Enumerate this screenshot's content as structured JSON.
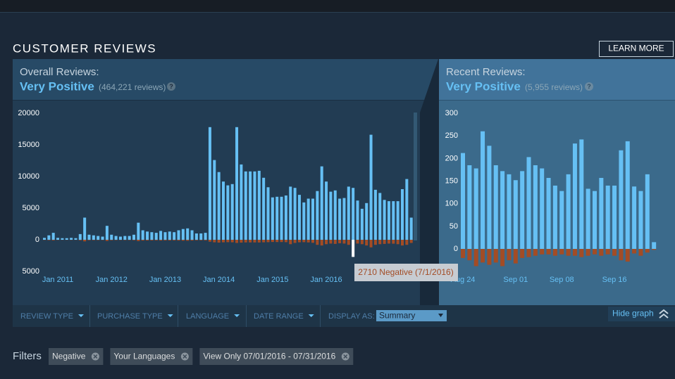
{
  "header": {
    "title": "CUSTOMER REVIEWS",
    "learn_more": "LEARN MORE"
  },
  "overall": {
    "label": "Overall Reviews:",
    "rating": "Very Positive",
    "count": "(464,221 reviews)",
    "help": "?"
  },
  "recent": {
    "label": "Recent Reviews:",
    "rating": "Very Positive",
    "count": "(5,955 reviews)",
    "help": "?"
  },
  "chart_data": [
    {
      "type": "bar",
      "categories": [
        null,
        null,
        null,
        "Jan 2011",
        null,
        null,
        null,
        null,
        null,
        null,
        null,
        null,
        null,
        null,
        null,
        "Jan 2012",
        null,
        null,
        null,
        null,
        null,
        null,
        null,
        null,
        null,
        null,
        null,
        "Jan 2013",
        null,
        null,
        null,
        null,
        null,
        null,
        null,
        null,
        null,
        null,
        null,
        "Jan 2014",
        null,
        null,
        null,
        null,
        null,
        null,
        null,
        null,
        null,
        null,
        null,
        "Jan 2015",
        null,
        null,
        null,
        null,
        null,
        null,
        null,
        null,
        null,
        null,
        null,
        "Jan 2016",
        null,
        null,
        null,
        null,
        null,
        null,
        null,
        null,
        null,
        null,
        null,
        null,
        null,
        null,
        null,
        null,
        null,
        null,
        null
      ],
      "series": [
        {
          "color": "#66c0f4",
          "values": [
            300,
            700,
            1100,
            300,
            250,
            250,
            300,
            250,
            900,
            3500,
            800,
            700,
            600,
            500,
            2200,
            800,
            600,
            500,
            600,
            600,
            800,
            2700,
            1500,
            1300,
            1200,
            1100,
            1400,
            1200,
            1300,
            1200,
            1500,
            1700,
            1800,
            1500,
            1000,
            1000,
            1100,
            17800,
            12600,
            10700,
            9200,
            8600,
            8800,
            17800,
            11900,
            10800,
            10800,
            10800,
            10900,
            9800,
            8300,
            6700,
            6800,
            6800,
            7000,
            8400,
            8200,
            7100,
            5900,
            6500,
            6500,
            7700,
            11600,
            9200,
            7600,
            7800,
            6500,
            6600,
            8400,
            8200,
            6200,
            4900,
            5800,
            16600,
            7900,
            7400,
            6300,
            6100,
            6100,
            6100,
            8000,
            9600,
            3500
          ]
        },
        {
          "color": "#a34c25",
          "values": [
            -30,
            -60,
            -90,
            -30,
            -20,
            -20,
            -30,
            -20,
            -80,
            -250,
            -70,
            -60,
            -50,
            -40,
            -180,
            -70,
            -50,
            -40,
            -50,
            -50,
            -70,
            -200,
            -120,
            -110,
            -100,
            -90,
            -120,
            -100,
            -110,
            -100,
            -120,
            -140,
            -150,
            -120,
            -80,
            -80,
            -90,
            -300,
            -400,
            -450,
            -400,
            -380,
            -400,
            -500,
            -450,
            -420,
            -420,
            -420,
            -430,
            -400,
            -380,
            -350,
            -360,
            -360,
            -380,
            -700,
            -500,
            -400,
            -380,
            -420,
            -480,
            -800,
            -900,
            -700,
            -600,
            -650,
            -550,
            -600,
            -800,
            -2710,
            -600,
            -700,
            -900,
            -1200,
            -800,
            -700,
            -650,
            -600,
            -620,
            -700,
            -900,
            -800,
            -500
          ]
        }
      ],
      "highlight": {
        "series": 1,
        "index": 69,
        "color": "#ffffff"
      },
      "ylim": [
        -5000,
        20000
      ],
      "yticks": [
        20000,
        15000,
        10000,
        5000,
        0,
        {
          "value": -5000,
          "label": "5000"
        }
      ],
      "grid": false
    },
    {
      "type": "bar",
      "categories": [
        "Aug 24",
        null,
        null,
        null,
        null,
        null,
        null,
        null,
        "Sep 01",
        null,
        null,
        null,
        null,
        null,
        null,
        "Sep 08",
        null,
        null,
        null,
        null,
        null,
        null,
        null,
        "Sep 16",
        null,
        null,
        null,
        null,
        null,
        null
      ],
      "series": [
        {
          "color": "#66c0f4",
          "values": [
            212,
            185,
            178,
            260,
            228,
            185,
            172,
            165,
            152,
            172,
            203,
            185,
            178,
            157,
            140,
            128,
            165,
            233,
            242,
            133,
            128,
            157,
            140,
            140,
            218,
            238,
            138,
            128,
            165,
            15
          ]
        },
        {
          "color": "#a34c25",
          "values": [
            -20,
            -25,
            -38,
            -30,
            -35,
            -30,
            -38,
            -25,
            -32,
            -20,
            -18,
            -15,
            -12,
            -12,
            -15,
            -12,
            -15,
            -15,
            -18,
            -15,
            -12,
            -15,
            -12,
            -15,
            -25,
            -28,
            -10,
            -15,
            -8,
            -2
          ]
        }
      ],
      "ylim": [
        -45,
        300
      ],
      "yticks": [
        300,
        250,
        200,
        150,
        100,
        50,
        0
      ],
      "grid": false
    }
  ],
  "tooltip": "2710 Negative (7/1/2016)",
  "filter_bar": {
    "items": [
      "REVIEW TYPE",
      "PURCHASE TYPE",
      "LANGUAGE",
      "DATE RANGE"
    ],
    "display_label": "DISPLAY AS:",
    "display_value": "Summary",
    "hide_graph": "Hide graph"
  },
  "filters": {
    "label": "Filters",
    "items": [
      "Negative",
      "Your Languages",
      "View Only 07/01/2016 - 07/31/2016"
    ]
  }
}
